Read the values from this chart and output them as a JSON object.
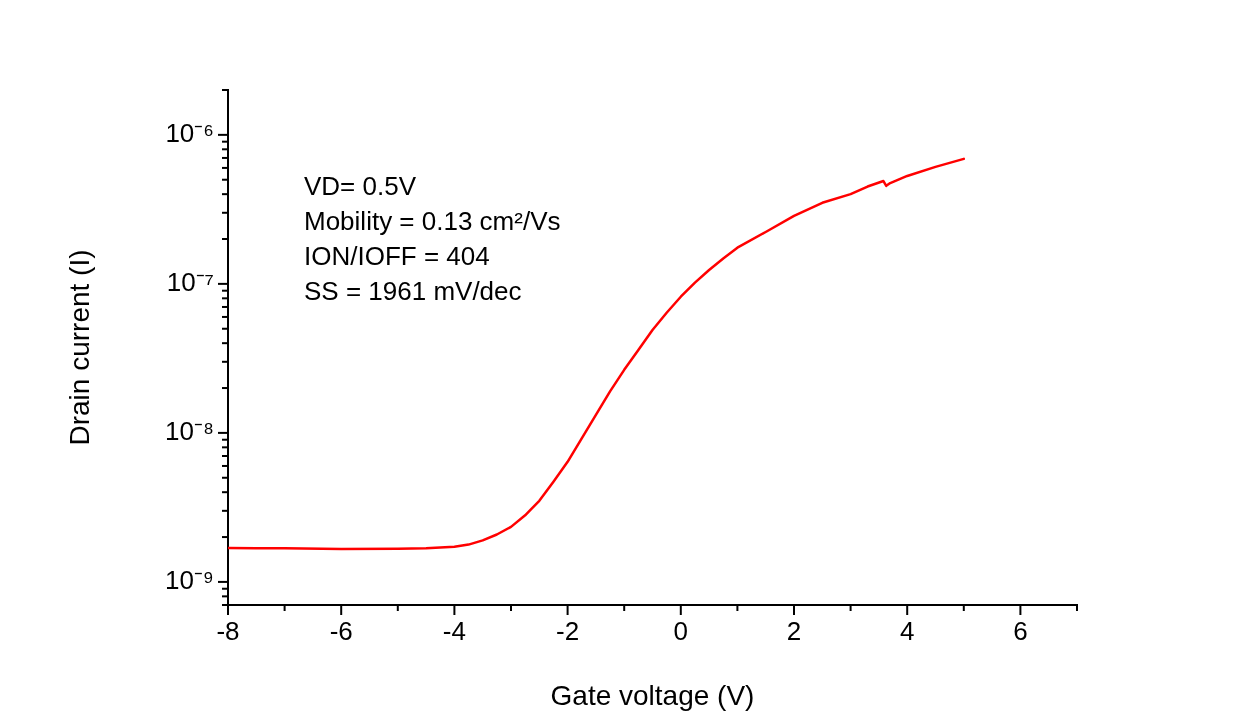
{
  "chart_data": {
    "type": "line",
    "xlabel": "Gate voltage (V)",
    "ylabel": "Drain current (I)",
    "annotations": [
      "VD= 0.5V",
      "Mobility = 0.13 cm²/Vs",
      "ION/IOFF = 404",
      "SS = 1961 mV/dec"
    ],
    "log": "y",
    "xlim": [
      -8,
      7
    ],
    "ylim": [
      7e-10,
      2e-06
    ],
    "xticks": [
      -8,
      {
        "value": -7,
        "label": null
      },
      -6,
      {
        "value": -5,
        "label": null
      },
      -4,
      {
        "value": -3,
        "label": null
      },
      -2,
      {
        "value": -1,
        "label": null
      },
      0,
      {
        "value": 1,
        "label": null
      },
      2,
      {
        "value": 3,
        "label": null
      },
      4,
      {
        "value": 5,
        "label": null
      },
      6,
      {
        "value": 7,
        "label": null
      }
    ],
    "yticks": [
      {
        "value": 7e-10,
        "label": null
      },
      {
        "value": 8e-10,
        "label": null
      },
      {
        "value": 9e-10,
        "label": null
      },
      {
        "value": 1e-09,
        "label": "10⁻⁹"
      },
      {
        "value": 2e-09,
        "label": null
      },
      {
        "value": 3e-09,
        "label": null
      },
      {
        "value": 4e-09,
        "label": null
      },
      {
        "value": 5e-09,
        "label": null
      },
      {
        "value": 6e-09,
        "label": null
      },
      {
        "value": 7e-09,
        "label": null
      },
      {
        "value": 8e-09,
        "label": null
      },
      {
        "value": 9e-09,
        "label": null
      },
      {
        "value": 1e-08,
        "label": "10⁻⁸"
      },
      {
        "value": 2e-08,
        "label": null
      },
      {
        "value": 3e-08,
        "label": null
      },
      {
        "value": 4e-08,
        "label": null
      },
      {
        "value": 5e-08,
        "label": null
      },
      {
        "value": 6e-08,
        "label": null
      },
      {
        "value": 7e-08,
        "label": null
      },
      {
        "value": 8e-08,
        "label": null
      },
      {
        "value": 9e-08,
        "label": null
      },
      {
        "value": 1e-07,
        "label": "10⁻⁷"
      },
      {
        "value": 2e-07,
        "label": null
      },
      {
        "value": 3e-07,
        "label": null
      },
      {
        "value": 4e-07,
        "label": null
      },
      {
        "value": 5e-07,
        "label": null
      },
      {
        "value": 6e-07,
        "label": null
      },
      {
        "value": 7e-07,
        "label": null
      },
      {
        "value": 8e-07,
        "label": null
      },
      {
        "value": 9e-07,
        "label": null
      },
      {
        "value": 1e-06,
        "label": "10⁻⁶"
      },
      {
        "value": 2e-06,
        "label": null
      }
    ],
    "grid": false,
    "legend": false,
    "marker": "none",
    "line_style": "solid",
    "series": [
      {
        "color": "#ff0000",
        "x": [
          -8,
          -7,
          -6,
          -5,
          -4.5,
          -4,
          -3.75,
          -3.5,
          -3.25,
          -3,
          -2.75,
          -2.5,
          -2.25,
          -2,
          -1.75,
          -1.5,
          -1.25,
          -1,
          -0.75,
          -0.5,
          -0.25,
          0,
          0.25,
          0.5,
          0.75,
          1,
          1.5,
          2,
          2.5,
          3,
          3.3,
          3.58,
          3.63,
          3.7,
          4,
          4.5,
          5
        ],
        "values": [
          1.69e-09,
          1.68e-09,
          1.66e-09,
          1.67e-09,
          1.68e-09,
          1.72e-09,
          1.78e-09,
          1.9e-09,
          2.08e-09,
          2.34e-09,
          2.8e-09,
          3.5e-09,
          4.7e-09,
          6.4e-09,
          9.2e-09,
          1.32e-08,
          1.9e-08,
          2.65e-08,
          3.6e-08,
          4.9e-08,
          6.4e-08,
          8.2e-08,
          1.02e-07,
          1.24e-07,
          1.48e-07,
          1.75e-07,
          2.23e-07,
          2.86e-07,
          3.5e-07,
          4e-07,
          4.5e-07,
          4.9e-07,
          4.55e-07,
          4.75e-07,
          5.3e-07,
          6.1e-07,
          6.9e-07
        ]
      }
    ]
  }
}
